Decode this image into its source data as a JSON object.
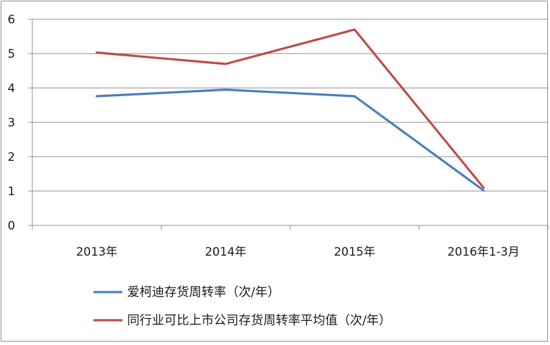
{
  "chart_data": {
    "type": "line",
    "categories": [
      "2013年",
      "2014年",
      "2015年",
      "2016年1-3月"
    ],
    "series": [
      {
        "name": "爱柯迪存货周转率（次/年）",
        "values": [
          3.76,
          3.95,
          3.76,
          1.02
        ],
        "color": "#4a7ebb"
      },
      {
        "name": "同行业可比上市公司存货周转率平均值（次/年）",
        "values": [
          5.03,
          4.7,
          5.7,
          1.1
        ],
        "color": "#be4b48"
      }
    ],
    "ylim": [
      0,
      6
    ],
    "yticks": [
      "0",
      "1",
      "2",
      "3",
      "4",
      "5",
      "6"
    ],
    "grid": true,
    "legend_position": "bottom",
    "title": "",
    "xlabel": "",
    "ylabel": ""
  }
}
